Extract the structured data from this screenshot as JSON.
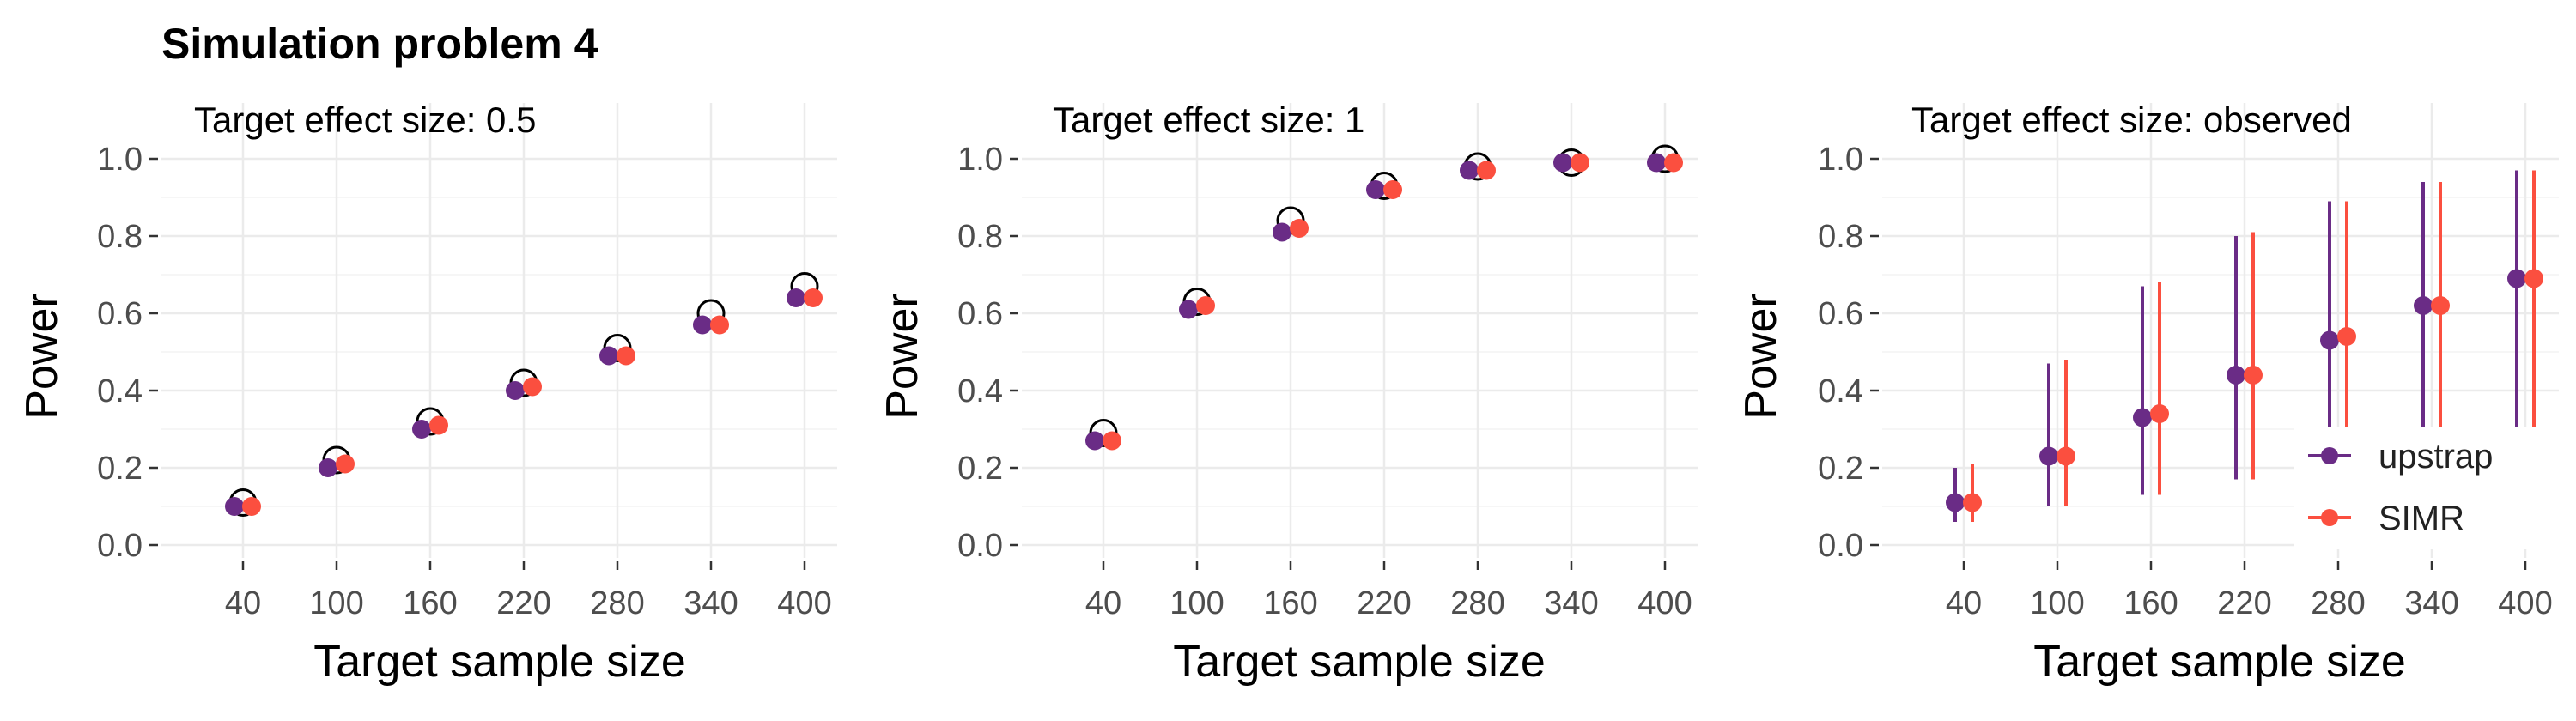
{
  "title": "Simulation problem 4",
  "colors": {
    "upstrap": "#6a2c86",
    "SIMR": "#fb4f3f",
    "grid": "#ebebeb",
    "target": "#000000"
  },
  "chart_data": [
    {
      "type": "scatter",
      "facet_title": "Target effect size: 0.5",
      "xlabel": "Target sample size",
      "ylabel": "Power",
      "categories": [
        "40",
        "100",
        "160",
        "220",
        "280",
        "340",
        "400"
      ],
      "ylim": [
        0,
        1.1
      ],
      "yticks": [
        "0.0",
        "0.2",
        "0.4",
        "0.6",
        "0.8",
        "1.0"
      ],
      "target_power": [
        0.11,
        0.22,
        0.32,
        0.42,
        0.51,
        0.6,
        0.67
      ],
      "series": [
        {
          "name": "upstrap",
          "values": [
            0.1,
            0.2,
            0.3,
            0.4,
            0.49,
            0.57,
            0.64
          ]
        },
        {
          "name": "SIMR",
          "values": [
            0.1,
            0.21,
            0.31,
            0.41,
            0.49,
            0.57,
            0.64
          ]
        }
      ],
      "grid": true
    },
    {
      "type": "scatter",
      "facet_title": "Target effect size: 1",
      "xlabel": "Target sample size",
      "ylabel": "Power",
      "categories": [
        "40",
        "100",
        "160",
        "220",
        "280",
        "340",
        "400"
      ],
      "ylim": [
        0,
        1.1
      ],
      "yticks": [
        "0.0",
        "0.2",
        "0.4",
        "0.6",
        "0.8",
        "1.0"
      ],
      "target_power": [
        0.29,
        0.63,
        0.84,
        0.93,
        0.98,
        0.99,
        1.0
      ],
      "series": [
        {
          "name": "upstrap",
          "values": [
            0.27,
            0.61,
            0.81,
            0.92,
            0.97,
            0.99,
            0.99
          ]
        },
        {
          "name": "SIMR",
          "values": [
            0.27,
            0.62,
            0.82,
            0.92,
            0.97,
            0.99,
            0.99
          ]
        }
      ],
      "grid": true
    },
    {
      "type": "scatter",
      "facet_title": "Target effect size: observed",
      "xlabel": "Target sample size",
      "ylabel": "Power",
      "categories": [
        "40",
        "100",
        "160",
        "220",
        "280",
        "340",
        "400"
      ],
      "ylim": [
        0,
        1.1
      ],
      "yticks": [
        "0.0",
        "0.2",
        "0.4",
        "0.6",
        "0.8",
        "1.0"
      ],
      "series": [
        {
          "name": "upstrap",
          "values": [
            0.11,
            0.23,
            0.33,
            0.44,
            0.53,
            0.62,
            0.69
          ],
          "lower": [
            0.06,
            0.1,
            0.13,
            0.17,
            0.2,
            0.23,
            0.25
          ],
          "upper": [
            0.2,
            0.47,
            0.67,
            0.8,
            0.89,
            0.94,
            0.97
          ]
        },
        {
          "name": "SIMR",
          "values": [
            0.11,
            0.23,
            0.34,
            0.44,
            0.54,
            0.62,
            0.69
          ],
          "lower": [
            0.06,
            0.1,
            0.13,
            0.17,
            0.2,
            0.23,
            0.25
          ],
          "upper": [
            0.21,
            0.48,
            0.68,
            0.81,
            0.89,
            0.94,
            0.97
          ]
        }
      ],
      "grid": true,
      "legend": {
        "position": "bottom-right",
        "entries": [
          "upstrap",
          "SIMR"
        ]
      }
    }
  ]
}
